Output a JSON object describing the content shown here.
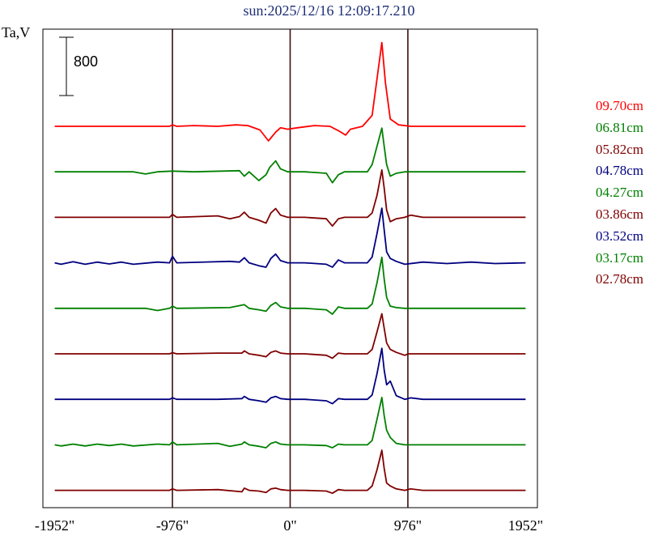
{
  "chart_data": {
    "type": "line",
    "title": "sun:2025/12/16 12:09:17.210",
    "ylabel": "Ta,V",
    "scale_bar": "800",
    "xlim": [
      -2050,
      2050
    ],
    "x_ticks": [
      "-1952\"",
      "-976\"",
      "0\"",
      "976\"",
      "1952\""
    ],
    "x_tick_values": [
      -1952,
      -976,
      0,
      976,
      1952
    ],
    "vertical_lines": [
      -976,
      0,
      976
    ],
    "series": [
      {
        "name": "09.70cm",
        "color": "#ff0000",
        "points": [
          [
            -1952,
            0
          ],
          [
            -1000,
            0
          ],
          [
            -976,
            20
          ],
          [
            -940,
            0
          ],
          [
            -800,
            10
          ],
          [
            -600,
            0
          ],
          [
            -450,
            20
          ],
          [
            -350,
            10
          ],
          [
            -250,
            -50
          ],
          [
            -180,
            -200
          ],
          [
            -120,
            -80
          ],
          [
            -80,
            -20
          ],
          [
            -20,
            -40
          ],
          [
            60,
            -20
          ],
          [
            200,
            10
          ],
          [
            330,
            0
          ],
          [
            400,
            -60
          ],
          [
            460,
            -120
          ],
          [
            500,
            -40
          ],
          [
            600,
            0
          ],
          [
            680,
            150
          ],
          [
            720,
            650
          ],
          [
            760,
            1150
          ],
          [
            790,
            600
          ],
          [
            830,
            100
          ],
          [
            900,
            20
          ],
          [
            1000,
            0
          ],
          [
            1952,
            0
          ]
        ]
      },
      {
        "name": "06.81cm",
        "color": "#008000",
        "points": [
          [
            -1952,
            0
          ],
          [
            -1300,
            0
          ],
          [
            -1200,
            -30
          ],
          [
            -1100,
            0
          ],
          [
            -976,
            10
          ],
          [
            -800,
            0
          ],
          [
            -420,
            15
          ],
          [
            -380,
            -60
          ],
          [
            -340,
            0
          ],
          [
            -260,
            -120
          ],
          [
            -200,
            -40
          ],
          [
            -170,
            60
          ],
          [
            -120,
            150
          ],
          [
            -80,
            40
          ],
          [
            -20,
            0
          ],
          [
            120,
            0
          ],
          [
            300,
            -20
          ],
          [
            350,
            -150
          ],
          [
            400,
            -40
          ],
          [
            450,
            0
          ],
          [
            640,
            0
          ],
          [
            680,
            100
          ],
          [
            720,
            350
          ],
          [
            760,
            600
          ],
          [
            780,
            350
          ],
          [
            800,
            100
          ],
          [
            830,
            -60
          ],
          [
            880,
            -20
          ],
          [
            950,
            0
          ],
          [
            1100,
            0
          ],
          [
            1952,
            0
          ]
        ]
      },
      {
        "name": "05.82cm",
        "color": "#800000",
        "points": [
          [
            -1952,
            0
          ],
          [
            -1000,
            0
          ],
          [
            -976,
            40
          ],
          [
            -940,
            0
          ],
          [
            -600,
            20
          ],
          [
            -500,
            -20
          ],
          [
            -420,
            10
          ],
          [
            -380,
            70
          ],
          [
            -340,
            0
          ],
          [
            -260,
            -40
          ],
          [
            -200,
            -80
          ],
          [
            -160,
            60
          ],
          [
            -120,
            120
          ],
          [
            -80,
            30
          ],
          [
            -20,
            0
          ],
          [
            120,
            0
          ],
          [
            300,
            -20
          ],
          [
            350,
            -120
          ],
          [
            400,
            -20
          ],
          [
            450,
            0
          ],
          [
            640,
            0
          ],
          [
            680,
            60
          ],
          [
            720,
            300
          ],
          [
            760,
            650
          ],
          [
            780,
            400
          ],
          [
            800,
            100
          ],
          [
            830,
            -60
          ],
          [
            880,
            -20
          ],
          [
            950,
            0
          ],
          [
            1000,
            30
          ],
          [
            1100,
            0
          ],
          [
            1952,
            0
          ]
        ]
      },
      {
        "name": "04.78cm",
        "color": "#000080",
        "points": [
          [
            -1952,
            0
          ],
          [
            -1900,
            -20
          ],
          [
            -1800,
            15
          ],
          [
            -1700,
            -20
          ],
          [
            -1600,
            10
          ],
          [
            -1500,
            -15
          ],
          [
            -1400,
            10
          ],
          [
            -1300,
            -20
          ],
          [
            -1100,
            10
          ],
          [
            -1000,
            0
          ],
          [
            -976,
            90
          ],
          [
            -940,
            0
          ],
          [
            -500,
            20
          ],
          [
            -420,
            10
          ],
          [
            -380,
            70
          ],
          [
            -340,
            0
          ],
          [
            -260,
            -40
          ],
          [
            -200,
            -60
          ],
          [
            -160,
            60
          ],
          [
            -120,
            120
          ],
          [
            -80,
            30
          ],
          [
            -20,
            0
          ],
          [
            120,
            0
          ],
          [
            300,
            -20
          ],
          [
            350,
            -60
          ],
          [
            400,
            40
          ],
          [
            450,
            0
          ],
          [
            640,
            0
          ],
          [
            680,
            80
          ],
          [
            720,
            400
          ],
          [
            760,
            750
          ],
          [
            780,
            450
          ],
          [
            800,
            150
          ],
          [
            830,
            60
          ],
          [
            880,
            20
          ],
          [
            950,
            -20
          ],
          [
            1100,
            10
          ],
          [
            1300,
            -10
          ],
          [
            1500,
            10
          ],
          [
            1700,
            -10
          ],
          [
            1952,
            0
          ]
        ]
      },
      {
        "name": "04.27cm",
        "color": "#008000",
        "points": [
          [
            -1952,
            0
          ],
          [
            -1200,
            0
          ],
          [
            -1100,
            -30
          ],
          [
            -1000,
            0
          ],
          [
            -976,
            30
          ],
          [
            -940,
            0
          ],
          [
            -500,
            10
          ],
          [
            -380,
            50
          ],
          [
            -340,
            0
          ],
          [
            -260,
            -20
          ],
          [
            -200,
            -40
          ],
          [
            -160,
            40
          ],
          [
            -120,
            80
          ],
          [
            -80,
            20
          ],
          [
            -20,
            0
          ],
          [
            120,
            0
          ],
          [
            300,
            -20
          ],
          [
            350,
            -80
          ],
          [
            400,
            20
          ],
          [
            450,
            0
          ],
          [
            640,
            0
          ],
          [
            680,
            60
          ],
          [
            720,
            350
          ],
          [
            760,
            700
          ],
          [
            780,
            400
          ],
          [
            800,
            150
          ],
          [
            830,
            30
          ],
          [
            880,
            10
          ],
          [
            950,
            0
          ],
          [
            1952,
            0
          ]
        ]
      },
      {
        "name": "03.86cm",
        "color": "#800000",
        "points": [
          [
            -1952,
            0
          ],
          [
            -1000,
            0
          ],
          [
            -976,
            15
          ],
          [
            -940,
            0
          ],
          [
            -600,
            10
          ],
          [
            -400,
            10
          ],
          [
            -380,
            40
          ],
          [
            -340,
            0
          ],
          [
            -260,
            -20
          ],
          [
            -200,
            -40
          ],
          [
            -160,
            20
          ],
          [
            -120,
            40
          ],
          [
            -80,
            10
          ],
          [
            -20,
            0
          ],
          [
            120,
            0
          ],
          [
            300,
            -20
          ],
          [
            350,
            -60
          ],
          [
            400,
            10
          ],
          [
            450,
            0
          ],
          [
            640,
            0
          ],
          [
            680,
            60
          ],
          [
            720,
            300
          ],
          [
            760,
            550
          ],
          [
            780,
            350
          ],
          [
            800,
            150
          ],
          [
            830,
            60
          ],
          [
            880,
            20
          ],
          [
            950,
            -20
          ],
          [
            980,
            0
          ],
          [
            1952,
            0
          ]
        ]
      },
      {
        "name": "03.52cm",
        "color": "#000080",
        "points": [
          [
            -1952,
            0
          ],
          [
            -1000,
            0
          ],
          [
            -976,
            20
          ],
          [
            -940,
            0
          ],
          [
            -600,
            0
          ],
          [
            -400,
            10
          ],
          [
            -380,
            40
          ],
          [
            -340,
            0
          ],
          [
            -260,
            -20
          ],
          [
            -200,
            -40
          ],
          [
            -160,
            20
          ],
          [
            -120,
            40
          ],
          [
            -80,
            10
          ],
          [
            -20,
            0
          ],
          [
            120,
            0
          ],
          [
            300,
            -20
          ],
          [
            350,
            -60
          ],
          [
            400,
            10
          ],
          [
            450,
            0
          ],
          [
            640,
            0
          ],
          [
            680,
            60
          ],
          [
            720,
            350
          ],
          [
            760,
            700
          ],
          [
            780,
            400
          ],
          [
            800,
            200
          ],
          [
            830,
            250
          ],
          [
            880,
            50
          ],
          [
            950,
            0
          ],
          [
            1000,
            20
          ],
          [
            1100,
            0
          ],
          [
            1952,
            0
          ]
        ]
      },
      {
        "name": "03.17cm",
        "color": "#008000",
        "points": [
          [
            -1952,
            0
          ],
          [
            -1900,
            -15
          ],
          [
            -1800,
            10
          ],
          [
            -1700,
            -15
          ],
          [
            -1600,
            10
          ],
          [
            -1500,
            -10
          ],
          [
            -1400,
            10
          ],
          [
            -1300,
            -15
          ],
          [
            -1100,
            10
          ],
          [
            -1000,
            0
          ],
          [
            -976,
            40
          ],
          [
            -940,
            0
          ],
          [
            -600,
            20
          ],
          [
            -500,
            -20
          ],
          [
            -400,
            10
          ],
          [
            -380,
            40
          ],
          [
            -340,
            0
          ],
          [
            -260,
            -20
          ],
          [
            -200,
            -40
          ],
          [
            -160,
            20
          ],
          [
            -120,
            40
          ],
          [
            -80,
            10
          ],
          [
            -20,
            0
          ],
          [
            120,
            0
          ],
          [
            300,
            -10
          ],
          [
            350,
            -40
          ],
          [
            400,
            10
          ],
          [
            450,
            0
          ],
          [
            640,
            0
          ],
          [
            680,
            60
          ],
          [
            720,
            350
          ],
          [
            760,
            650
          ],
          [
            780,
            400
          ],
          [
            800,
            200
          ],
          [
            830,
            100
          ],
          [
            880,
            20
          ],
          [
            950,
            0
          ],
          [
            1952,
            0
          ]
        ]
      },
      {
        "name": "02.78cm",
        "color": "#800000",
        "points": [
          [
            -1952,
            0
          ],
          [
            -1000,
            0
          ],
          [
            -976,
            20
          ],
          [
            -940,
            0
          ],
          [
            -600,
            10
          ],
          [
            -400,
            -20
          ],
          [
            -380,
            30
          ],
          [
            -340,
            0
          ],
          [
            -260,
            -10
          ],
          [
            -200,
            -30
          ],
          [
            -160,
            20
          ],
          [
            -120,
            30
          ],
          [
            -80,
            10
          ],
          [
            -20,
            0
          ],
          [
            120,
            0
          ],
          [
            300,
            -10
          ],
          [
            350,
            -40
          ],
          [
            400,
            10
          ],
          [
            450,
            0
          ],
          [
            640,
            0
          ],
          [
            680,
            60
          ],
          [
            720,
            280
          ],
          [
            760,
            550
          ],
          [
            780,
            300
          ],
          [
            800,
            100
          ],
          [
            830,
            60
          ],
          [
            880,
            20
          ],
          [
            950,
            0
          ],
          [
            1000,
            20
          ],
          [
            1100,
            0
          ],
          [
            1952,
            0
          ]
        ]
      }
    ]
  }
}
